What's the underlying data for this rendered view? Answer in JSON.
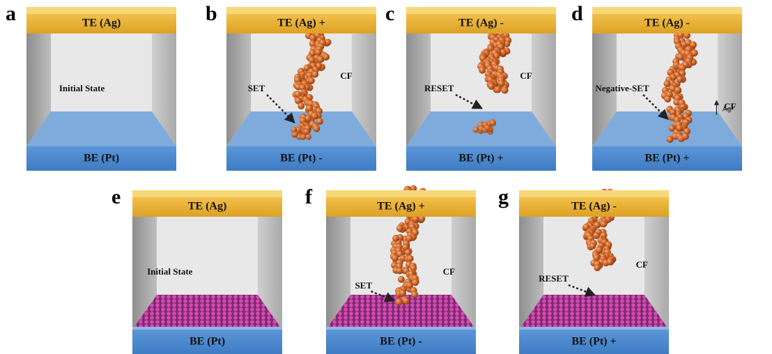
{
  "panels": [
    {
      "letter": "a",
      "top": "TE (Ag)",
      "bottom": "BE (Pt)",
      "notes": [
        "Initial State"
      ]
    },
    {
      "letter": "b",
      "top": "TE (Ag) +",
      "bottom": "BE (Pt) -",
      "notes": [
        "SET",
        "CF"
      ]
    },
    {
      "letter": "c",
      "top": "TE (Ag) -",
      "bottom": "BE (Pt) +",
      "notes": [
        "RESET",
        "CF"
      ]
    },
    {
      "letter": "d",
      "top": "TE (Ag) -",
      "bottom": "BE (Pt) +",
      "notes": [
        "Negative-SET",
        "CF",
        "Ag⁺"
      ]
    },
    {
      "letter": "e",
      "top": "TE (Ag)",
      "bottom": "BE (Pt)",
      "notes": [
        "Initial State"
      ]
    },
    {
      "letter": "f",
      "top": "TE (Ag) +",
      "bottom": "BE (Pt) -",
      "notes": [
        "SET",
        "CF"
      ]
    },
    {
      "letter": "g",
      "top": "TE (Ag) -",
      "bottom": "BE (Pt) +",
      "notes": [
        "RESET",
        "CF"
      ]
    }
  ]
}
